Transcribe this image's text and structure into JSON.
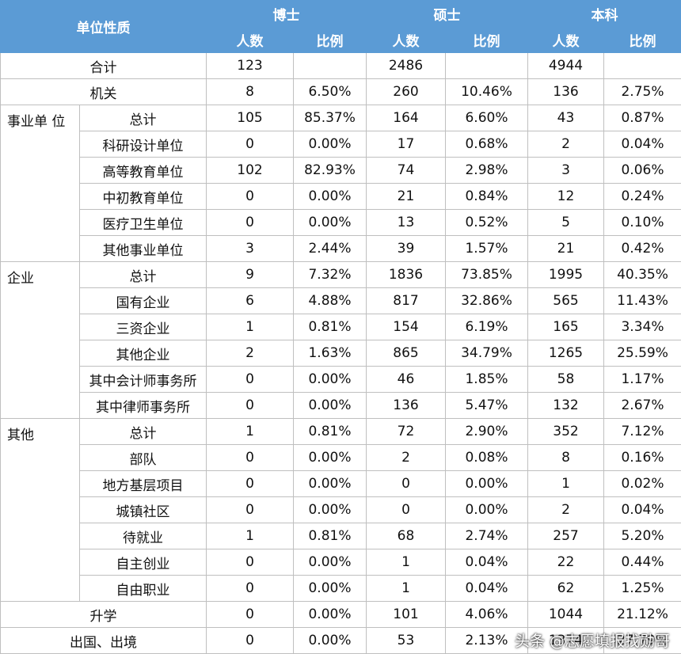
{
  "table": {
    "header": {
      "title": "单位性质",
      "groups": [
        "博士",
        "硕士",
        "本科"
      ],
      "subheads": [
        "人数",
        "比例",
        "人数",
        "比例",
        "人数",
        "比例"
      ]
    },
    "sections": [
      {
        "rows": [
          {
            "label": "合计",
            "cells": [
              "123",
              null,
              "2486",
              null,
              "4944",
              null
            ]
          },
          {
            "label": "机关",
            "cells": [
              "8",
              "6.50%",
              "260",
              "10.46%",
              "136",
              "2.75%"
            ]
          }
        ]
      },
      {
        "group": "事业单 位",
        "rows": [
          {
            "label": "总计",
            "cells": [
              "105",
              "85.37%",
              "164",
              "6.60%",
              "43",
              "0.87%"
            ]
          },
          {
            "label": "科研设计单位",
            "cells": [
              "0",
              "0.00%",
              "17",
              "0.68%",
              "2",
              "0.04%"
            ]
          },
          {
            "label": "高等教育单位",
            "cells": [
              "102",
              "82.93%",
              "74",
              "2.98%",
              "3",
              "0.06%"
            ]
          },
          {
            "label": "中初教育单位",
            "cells": [
              "0",
              "0.00%",
              "21",
              "0.84%",
              "12",
              "0.24%"
            ]
          },
          {
            "label": "医疗卫生单位",
            "cells": [
              "0",
              "0.00%",
              "13",
              "0.52%",
              "5",
              "0.10%"
            ]
          },
          {
            "label": "其他事业单位",
            "cells": [
              "3",
              "2.44%",
              "39",
              "1.57%",
              "21",
              "0.42%"
            ]
          }
        ]
      },
      {
        "group": "企业",
        "rows": [
          {
            "label": "总计",
            "cells": [
              "9",
              "7.32%",
              "1836",
              "73.85%",
              "1995",
              "40.35%"
            ]
          },
          {
            "label": "国有企业",
            "cells": [
              "6",
              "4.88%",
              "817",
              "32.86%",
              "565",
              "11.43%"
            ]
          },
          {
            "label": "三资企业",
            "cells": [
              "1",
              "0.81%",
              "154",
              "6.19%",
              "165",
              "3.34%"
            ]
          },
          {
            "label": "其他企业",
            "cells": [
              "2",
              "1.63%",
              "865",
              "34.79%",
              "1265",
              "25.59%"
            ]
          },
          {
            "label": "其中会计师事务所",
            "cells": [
              "0",
              "0.00%",
              "46",
              "1.85%",
              "58",
              "1.17%"
            ]
          },
          {
            "label": "其中律师事务所",
            "cells": [
              "0",
              "0.00%",
              "136",
              "5.47%",
              "132",
              "2.67%"
            ]
          }
        ]
      },
      {
        "group": "其他",
        "rows": [
          {
            "label": "总计",
            "cells": [
              "1",
              "0.81%",
              "72",
              "2.90%",
              "352",
              "7.12%"
            ]
          },
          {
            "label": "部队",
            "cells": [
              "0",
              "0.00%",
              "2",
              "0.08%",
              "8",
              "0.16%"
            ]
          },
          {
            "label": "地方基层项目",
            "cells": [
              "0",
              "0.00%",
              "0",
              "0.00%",
              "1",
              "0.02%"
            ]
          },
          {
            "label": "城镇社区",
            "cells": [
              "0",
              "0.00%",
              "0",
              "0.00%",
              "2",
              "0.04%"
            ]
          },
          {
            "label": "待就业",
            "cells": [
              "1",
              "0.81%",
              "68",
              "2.74%",
              "257",
              "5.20%"
            ]
          },
          {
            "label": "自主创业",
            "cells": [
              "0",
              "0.00%",
              "1",
              "0.04%",
              "22",
              "0.44%"
            ]
          },
          {
            "label": "自由职业",
            "cells": [
              "0",
              "0.00%",
              "1",
              "0.04%",
              "62",
              "1.25%"
            ]
          }
        ]
      },
      {
        "rows": [
          {
            "label": "升学",
            "cells": [
              "0",
              "0.00%",
              "101",
              "4.06%",
              "1044",
              "21.12%"
            ]
          },
          {
            "label": "出国、出境",
            "cells": [
              "0",
              "0.00%",
              "53",
              "2.13%",
              "1374",
              "27.79%"
            ]
          }
        ]
      }
    ]
  },
  "watermark": "头条 @志愿填报找勋哥"
}
